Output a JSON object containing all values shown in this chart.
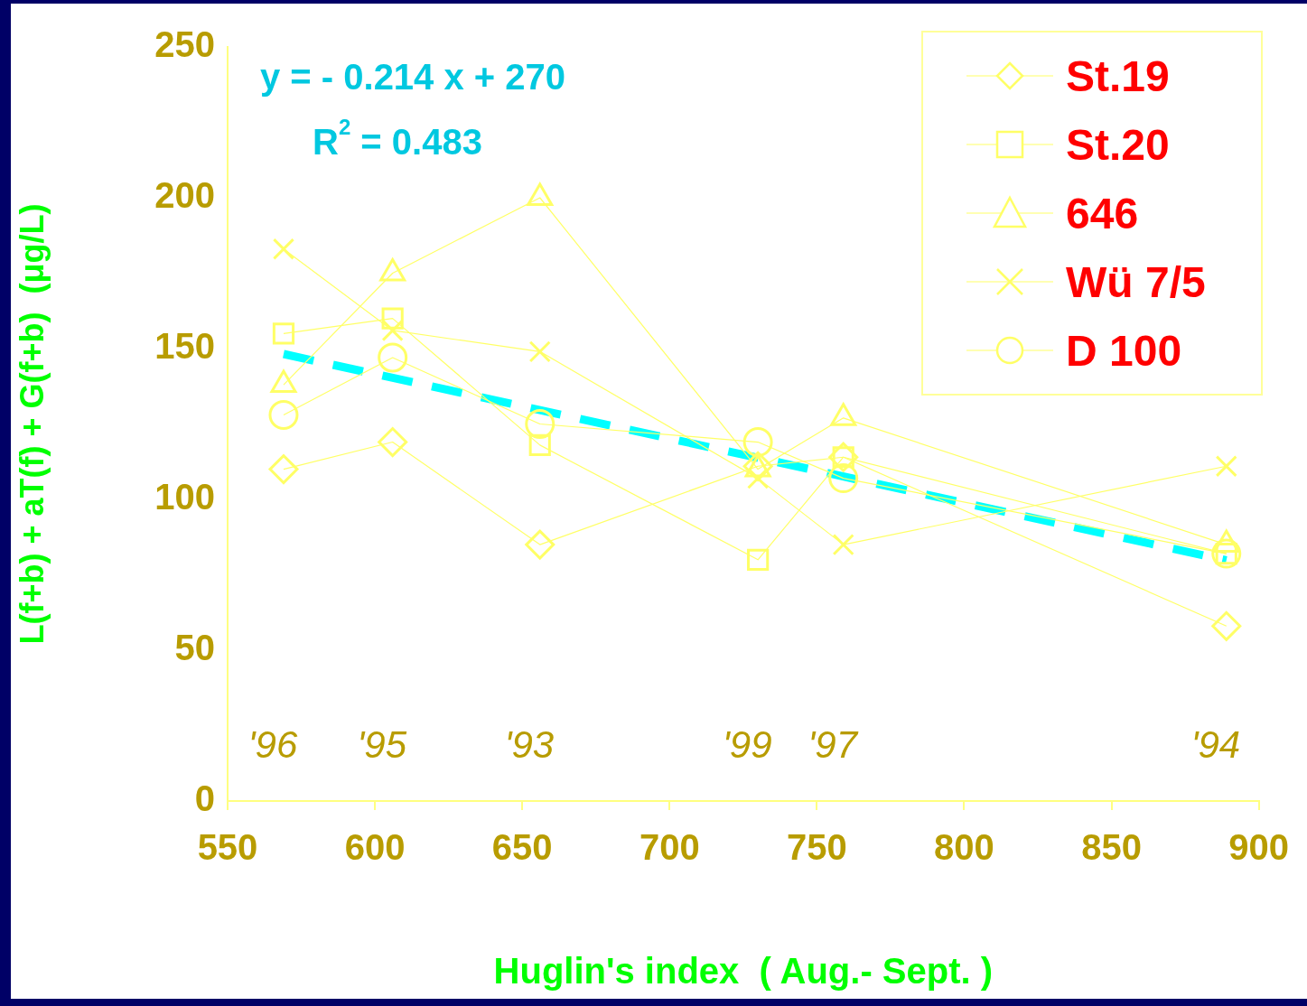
{
  "chart_data": {
    "type": "line",
    "xlabel": "Huglin's index  ( Aug.- Sept. )",
    "ylabel": "L(f+b) + aT(f) + G(f+b)  (μg/L)",
    "x": [
      569,
      606,
      656,
      730,
      759,
      889
    ],
    "xlim": [
      550,
      900
    ],
    "xticks": [
      550,
      600,
      650,
      700,
      750,
      800,
      850,
      900
    ],
    "ylim": [
      0,
      250
    ],
    "yticks": [
      0,
      50,
      100,
      150,
      200,
      250
    ],
    "grid": false,
    "legend": "top right",
    "series": [
      {
        "name": "St.19",
        "color": "#ffff66",
        "marker": "diamond",
        "values": [
          110,
          119,
          85,
          111,
          114,
          58
        ]
      },
      {
        "name": "St.20",
        "color": "#ffff66",
        "marker": "square",
        "values": [
          155,
          160,
          118,
          80,
          114,
          82
        ]
      },
      {
        "name": "646",
        "color": "#ffff66",
        "marker": "triangle",
        "values": [
          138,
          175,
          200,
          110,
          127,
          85
        ]
      },
      {
        "name": "Wü 7/5",
        "color": "#ffff66",
        "marker": "cross",
        "values": [
          183,
          156,
          149,
          107,
          85,
          111
        ]
      },
      {
        "name": "D 100",
        "color": "#ffff66",
        "marker": "circle",
        "values": [
          128,
          147,
          125,
          119,
          107,
          82
        ]
      },
      {
        "type": "line",
        "color": "#00ffff",
        "marker": "none",
        "line_style": "dashed",
        "x": [
          569,
          889
        ],
        "values": [
          148.2,
          79.8
        ]
      }
    ],
    "annotations": [
      "y = - 0.214 x + 270",
      "R$^{2}$ = 0.483",
      "'96",
      "'95",
      "'93",
      "'99",
      "'97",
      "'94"
    ]
  }
}
